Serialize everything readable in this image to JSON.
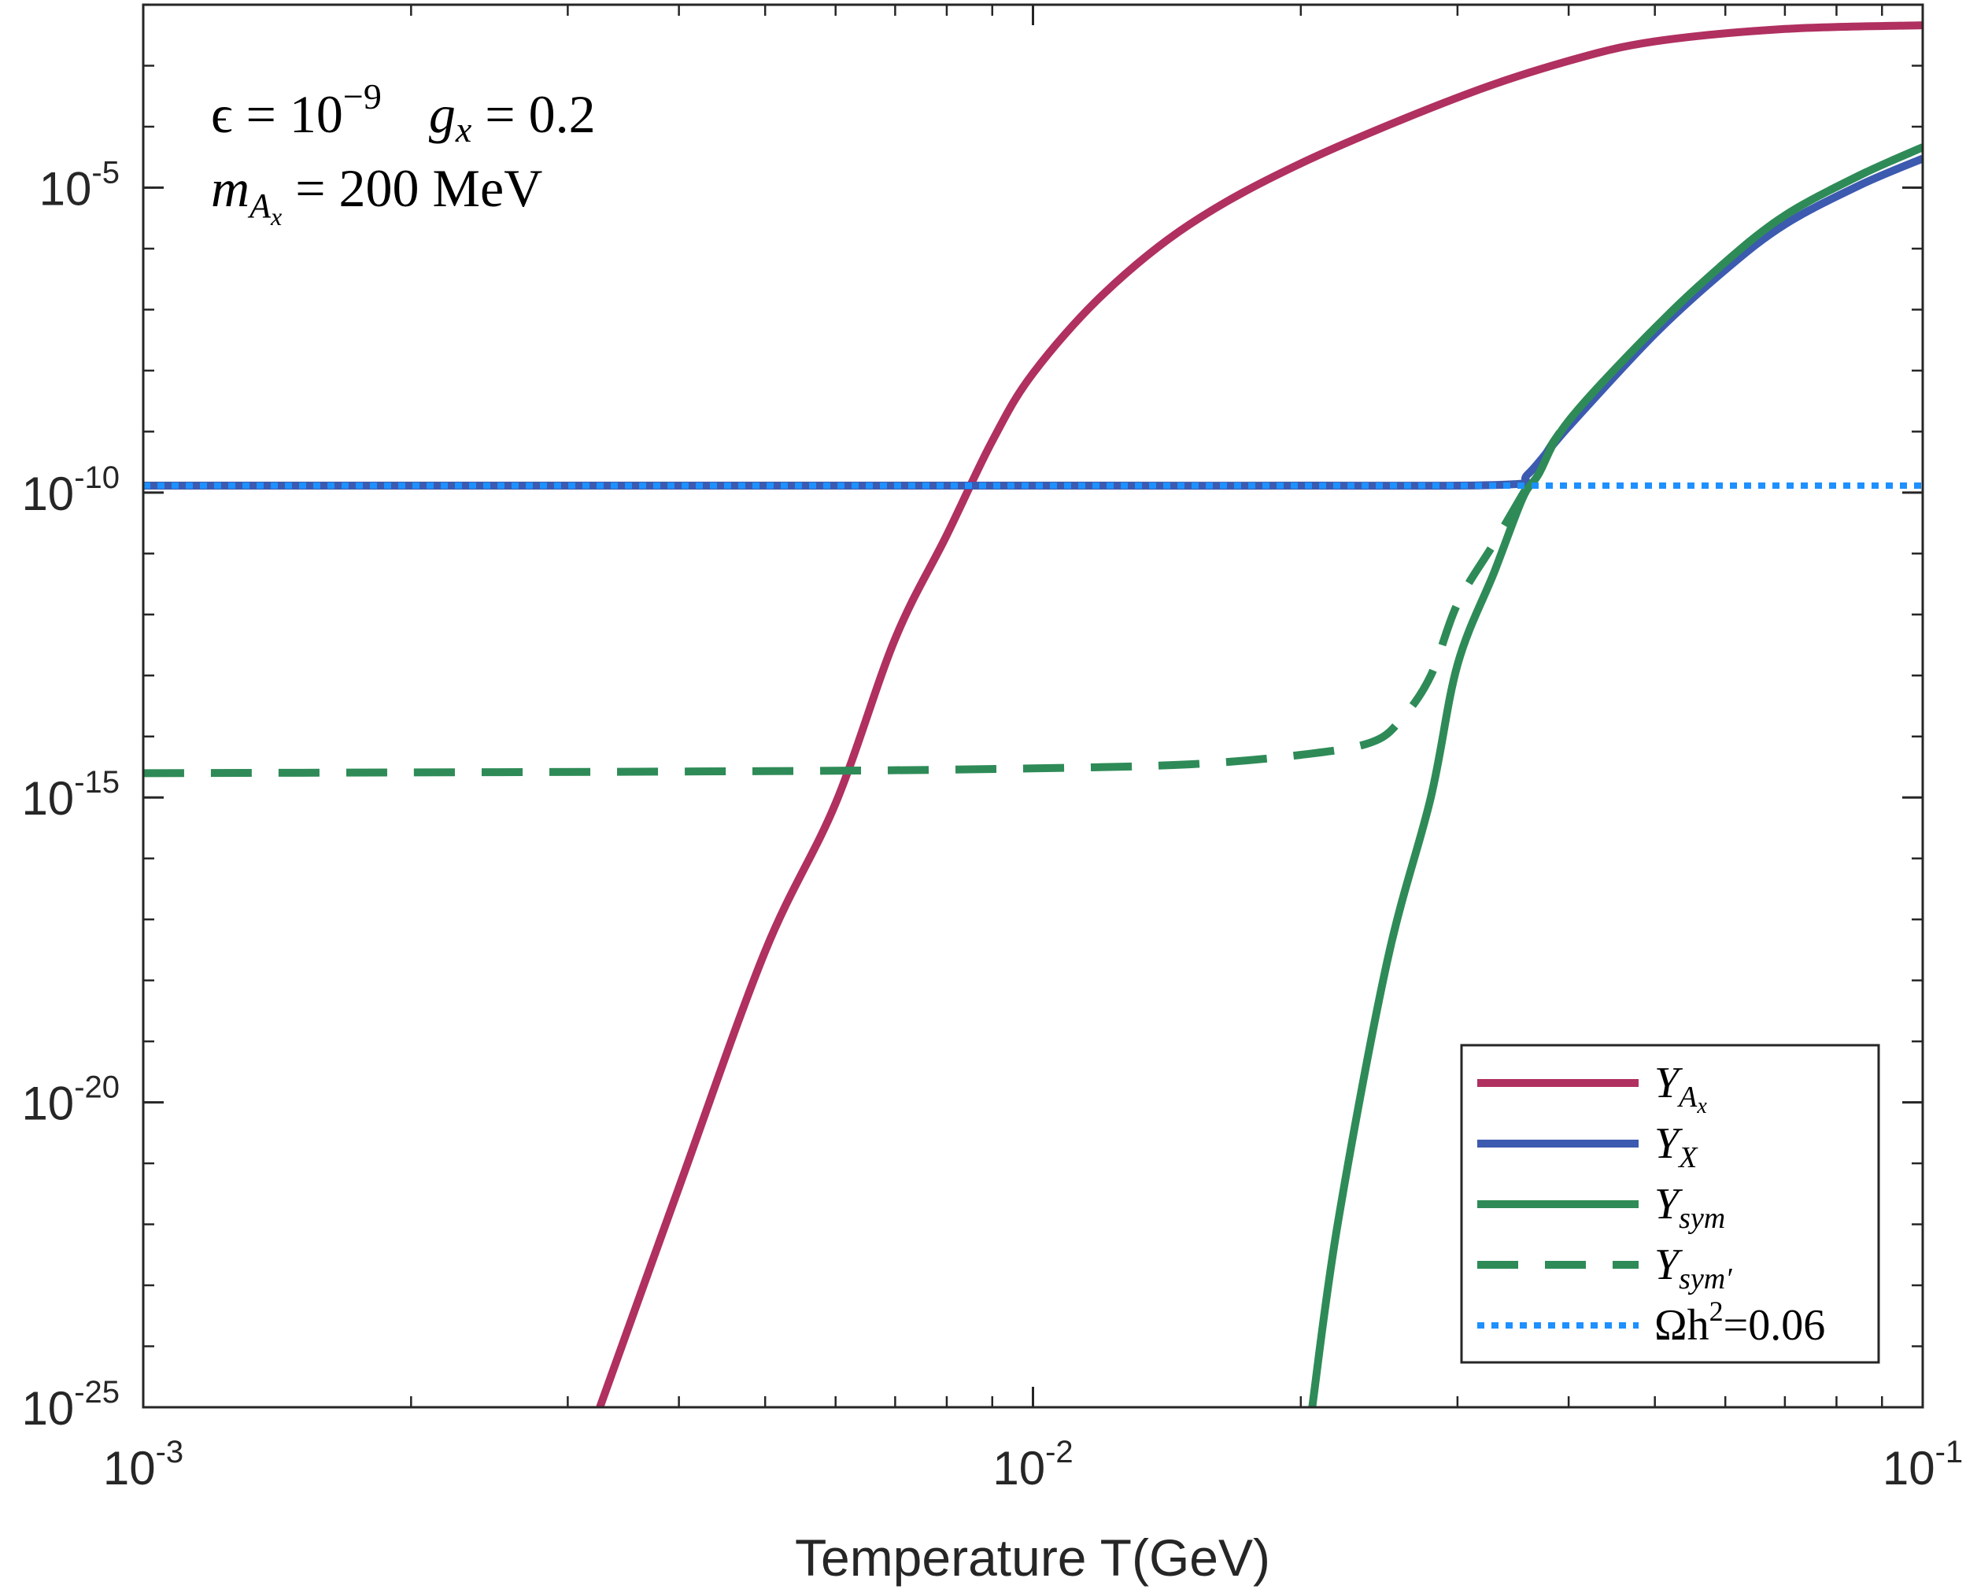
{
  "chart_data": {
    "type": "line",
    "xlabel": "Temperature T(GeV)",
    "ylabel": "",
    "xscale": "log",
    "yscale": "log",
    "xlim": [
      0.001,
      0.1
    ],
    "ylim": [
      1e-25,
      0.01
    ],
    "x_ticks": [
      {
        "value": 0.001,
        "base": "10",
        "exp": "-3"
      },
      {
        "value": 0.01,
        "base": "10",
        "exp": "-2"
      },
      {
        "value": 0.1,
        "base": "10",
        "exp": "-1"
      }
    ],
    "y_ticks": [
      {
        "value": 1e-05,
        "base": "10",
        "exp": "-5"
      },
      {
        "value": 1e-10,
        "base": "10",
        "exp": "-10"
      },
      {
        "value": 1e-15,
        "base": "10",
        "exp": "-15"
      },
      {
        "value": 1e-20,
        "base": "10",
        "exp": "-20"
      },
      {
        "value": 1e-25,
        "base": "10",
        "exp": "-25"
      }
    ],
    "grid": false,
    "legend_position": "bottom-right",
    "annotations": {
      "line1_epsilon": "ϵ = 10",
      "line1_epsilon_exp": "−9",
      "line1_gx": "g",
      "line1_gx_sub": "x",
      "line1_gx_val": " = 0.2",
      "line2_m": "m",
      "line2_sub": "A",
      "line2_subsub": "x",
      "line2_val": " = 200 MeV"
    },
    "series": [
      {
        "key": "YAx",
        "label_base": "Y",
        "label_sub": "A",
        "label_subsub": "x",
        "color": "#B03060",
        "style": "solid",
        "points": [
          [
            0.00326,
            1e-25
          ],
          [
            0.004,
            4e-22
          ],
          [
            0.005,
            3e-18
          ],
          [
            0.006,
            8e-16
          ],
          [
            0.007,
            4e-13
          ],
          [
            0.008,
            2e-11
          ],
          [
            0.009,
            7e-10
          ],
          [
            0.01,
            9e-09
          ],
          [
            0.012,
            1.8e-07
          ],
          [
            0.015,
            2.5e-06
          ],
          [
            0.02,
            2.5e-05
          ],
          [
            0.03,
            0.0003
          ],
          [
            0.04,
            0.0012
          ],
          [
            0.05,
            0.0025
          ],
          [
            0.07,
            0.004
          ],
          [
            0.1,
            0.0046
          ]
        ]
      },
      {
        "key": "YX",
        "label_base": "Y",
        "label_sub": "X",
        "label_subsub": "",
        "color": "#3C5AAF",
        "style": "solid",
        "points": [
          [
            0.001,
            1.3e-10
          ],
          [
            0.01,
            1.3e-10
          ],
          [
            0.02,
            1.3e-10
          ],
          [
            0.034,
            1.35e-10
          ],
          [
            0.036,
            2e-10
          ],
          [
            0.04,
            1.2e-09
          ],
          [
            0.05,
            4e-08
          ],
          [
            0.06,
            4.5e-07
          ],
          [
            0.07,
            2.5e-06
          ],
          [
            0.085,
            1.1e-05
          ],
          [
            0.1,
            3e-05
          ]
        ]
      },
      {
        "key": "Ysym",
        "label_base": "Y",
        "label_sub": "sym",
        "label_subsub": "",
        "color": "#2E8B57",
        "style": "solid",
        "points": [
          [
            0.0206,
            1e-25
          ],
          [
            0.022,
            1e-22
          ],
          [
            0.025,
            2e-18
          ],
          [
            0.028,
            1e-15
          ],
          [
            0.03,
            1.5e-13
          ],
          [
            0.033,
            5e-12
          ],
          [
            0.0355,
            8e-11
          ],
          [
            0.037,
            2e-10
          ],
          [
            0.04,
            1.5e-09
          ],
          [
            0.05,
            5e-08
          ],
          [
            0.06,
            6e-07
          ],
          [
            0.07,
            3.5e-06
          ],
          [
            0.085,
            1.6e-05
          ],
          [
            0.1,
            4.6e-05
          ]
        ]
      },
      {
        "key": "Ysymprime",
        "label_base": "Y",
        "label_sub": "sym′",
        "label_subsub": "",
        "color": "#2E8B57",
        "style": "dashed",
        "points": [
          [
            0.001,
            2.5e-15
          ],
          [
            0.005,
            2.7e-15
          ],
          [
            0.01,
            3e-15
          ],
          [
            0.015,
            3.5e-15
          ],
          [
            0.02,
            5e-15
          ],
          [
            0.024,
            8e-15
          ],
          [
            0.026,
            2e-14
          ],
          [
            0.028,
            1e-13
          ],
          [
            0.03,
            1.5e-12
          ],
          [
            0.033,
            1.5e-11
          ],
          [
            0.036,
            1.3e-10
          ],
          [
            0.04,
            1.5e-09
          ],
          [
            0.05,
            5e-08
          ],
          [
            0.06,
            6e-07
          ],
          [
            0.07,
            3.5e-06
          ],
          [
            0.085,
            1.6e-05
          ],
          [
            0.1,
            4.6e-05
          ]
        ]
      },
      {
        "key": "Omega",
        "label_base": "Ωh",
        "label_sup": "2",
        "label_val": "=0.06",
        "color": "#1E90FF",
        "style": "dotted",
        "points": [
          [
            0.001,
            1.3e-10
          ],
          [
            0.1,
            1.3e-10
          ]
        ]
      }
    ]
  }
}
